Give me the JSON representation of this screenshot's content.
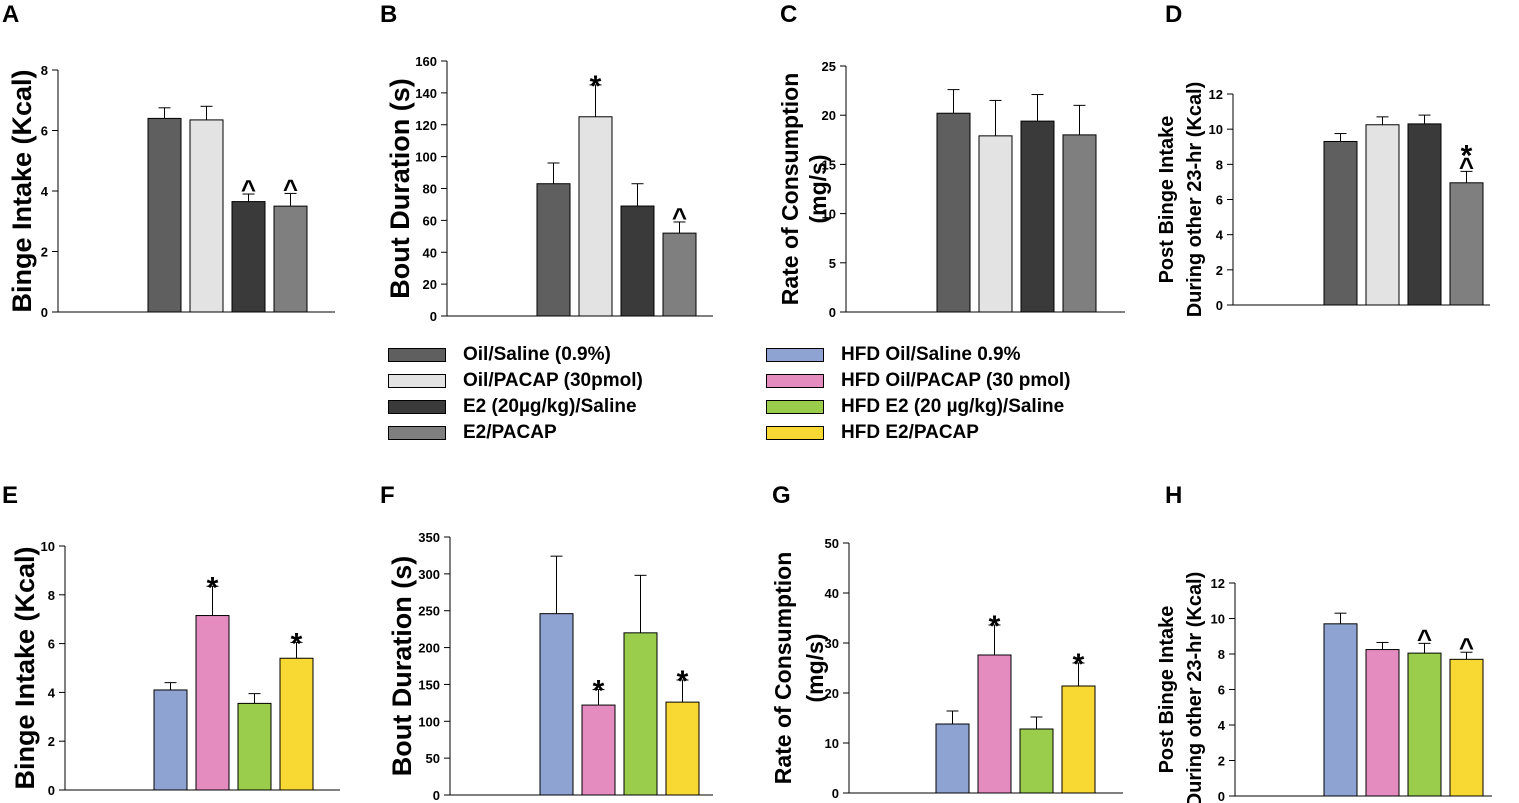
{
  "legend": {
    "left": [
      {
        "label": "Oil/Saline (0.9%)",
        "color": "#5f5f5f"
      },
      {
        "label": "Oil/PACAP (30pmol)",
        "color": "#e3e3e3"
      },
      {
        "label": "E2 (20µg/kg)/Saline",
        "color": "#3a3a3a"
      },
      {
        "label": "E2/PACAP",
        "color": "#7f7f7f"
      }
    ],
    "right": [
      {
        "label": "HFD Oil/Saline 0.9%",
        "color": "#8fa3d3"
      },
      {
        "label": "HFD Oil/PACAP (30 pmol)",
        "color": "#e48cc0"
      },
      {
        "label": "HFD E2 (20 µg/kg)/Saline",
        "color": "#9acd4c"
      },
      {
        "label": "HFD E2/PACAP",
        "color": "#f8d832"
      }
    ]
  },
  "chart_data": [
    {
      "panel": "A",
      "type": "bar",
      "ylabel": [
        "Binge Intake (Kcal)"
      ],
      "ylim": [
        0,
        8
      ],
      "yticks": [
        0,
        2,
        4,
        6,
        8
      ],
      "categories": [
        "Oil/Saline (0.9%)",
        "Oil/PACAP (30pmol)",
        "E2 (20µg/kg)/Saline",
        "E2/PACAP"
      ],
      "values": [
        6.4,
        6.35,
        3.65,
        3.5
      ],
      "errors": [
        0.35,
        0.45,
        0.25,
        0.42
      ],
      "annotations": [
        "",
        "",
        "^",
        "^"
      ],
      "colors": [
        "#5f5f5f",
        "#e3e3e3",
        "#3a3a3a",
        "#7f7f7f"
      ]
    },
    {
      "panel": "B",
      "type": "bar",
      "ylabel": [
        "Bout Duration (s)"
      ],
      "ylim": [
        0,
        160
      ],
      "yticks": [
        0,
        20,
        40,
        60,
        80,
        100,
        120,
        140,
        160
      ],
      "categories": [
        "Oil/Saline (0.9%)",
        "Oil/PACAP (30pmol)",
        "E2 (20µg/kg)/Saline",
        "E2/PACAP"
      ],
      "values": [
        83,
        125,
        69,
        52
      ],
      "errors": [
        13,
        20,
        14,
        7
      ],
      "annotations": [
        "",
        "*",
        "",
        "^"
      ],
      "colors": [
        "#5f5f5f",
        "#e3e3e3",
        "#3a3a3a",
        "#7f7f7f"
      ]
    },
    {
      "panel": "C",
      "type": "bar",
      "ylabel": [
        "Rate of Consumption",
        "(mg/s)"
      ],
      "ylim": [
        0,
        25
      ],
      "yticks": [
        0,
        5,
        10,
        15,
        20,
        25
      ],
      "categories": [
        "Oil/Saline (0.9%)",
        "Oil/PACAP (30pmol)",
        "E2 (20µg/kg)/Saline",
        "E2/PACAP"
      ],
      "values": [
        20.2,
        17.9,
        19.4,
        18.0
      ],
      "errors": [
        2.4,
        3.6,
        2.7,
        3.0
      ],
      "annotations": [
        "",
        "",
        "",
        ""
      ],
      "colors": [
        "#5f5f5f",
        "#e3e3e3",
        "#3a3a3a",
        "#7f7f7f"
      ]
    },
    {
      "panel": "D",
      "type": "bar",
      "ylabel": [
        "Post Binge Intake",
        "During other 23-hr (Kcal)"
      ],
      "ylim": [
        0,
        12
      ],
      "yticks": [
        0,
        2,
        4,
        6,
        8,
        10,
        12
      ],
      "categories": [
        "Oil/Saline (0.9%)",
        "Oil/PACAP (30pmol)",
        "E2 (20µg/kg)/Saline",
        "E2/PACAP"
      ],
      "values": [
        9.3,
        10.25,
        10.3,
        6.95
      ],
      "errors": [
        0.45,
        0.45,
        0.5,
        0.65
      ],
      "annotations": [
        "",
        "",
        "",
        "^*"
      ],
      "colors": [
        "#5f5f5f",
        "#e3e3e3",
        "#3a3a3a",
        "#7f7f7f"
      ]
    },
    {
      "panel": "E",
      "type": "bar",
      "ylabel": [
        "Binge Intake (Kcal)"
      ],
      "ylim": [
        0,
        10
      ],
      "yticks": [
        0,
        2,
        4,
        6,
        8,
        10
      ],
      "categories": [
        "HFD Oil/Saline 0.9%",
        "HFD Oil/PACAP (30 pmol)",
        "HFD E2 (20 µg/kg)/Saline",
        "HFD E2/PACAP"
      ],
      "values": [
        4.1,
        7.15,
        3.55,
        5.4
      ],
      "errors": [
        0.3,
        1.2,
        0.4,
        0.65
      ],
      "annotations": [
        "",
        "*",
        "",
        "*"
      ],
      "colors": [
        "#8fa3d3",
        "#e48cc0",
        "#9acd4c",
        "#f8d832"
      ]
    },
    {
      "panel": "F",
      "type": "bar",
      "ylabel": [
        "Bout Duration (s)"
      ],
      "ylim": [
        0,
        350
      ],
      "yticks": [
        0,
        50,
        100,
        150,
        200,
        250,
        300,
        350
      ],
      "categories": [
        "HFD Oil/Saline 0.9%",
        "HFD Oil/PACAP (30 pmol)",
        "HFD E2 (20 µg/kg)/Saline",
        "HFD E2/PACAP"
      ],
      "values": [
        246,
        122,
        220,
        126
      ],
      "errors": [
        78,
        21,
        78,
        30
      ],
      "annotations": [
        "",
        "*",
        "",
        "*"
      ],
      "colors": [
        "#8fa3d3",
        "#e48cc0",
        "#9acd4c",
        "#f8d832"
      ]
    },
    {
      "panel": "G",
      "type": "bar",
      "ylabel": [
        "Rate of Consumption",
        "(mg/s)"
      ],
      "ylim": [
        0,
        50
      ],
      "yticks": [
        0,
        10,
        20,
        30,
        40,
        50
      ],
      "categories": [
        "HFD Oil/Saline 0.9%",
        "HFD Oil/PACAP (30 pmol)",
        "HFD E2 (20 µg/kg)/Saline",
        "HFD E2/PACAP"
      ],
      "values": [
        13.8,
        27.6,
        12.8,
        21.4
      ],
      "errors": [
        2.6,
        6.0,
        2.4,
        4.6
      ],
      "annotations": [
        "",
        "*",
        "",
        "*"
      ],
      "colors": [
        "#8fa3d3",
        "#e48cc0",
        "#9acd4c",
        "#f8d832"
      ]
    },
    {
      "panel": "H",
      "type": "bar",
      "ylabel": [
        "Post Binge Intake",
        "During other 23-hr (Kcal)"
      ],
      "ylim": [
        0,
        12
      ],
      "yticks": [
        0,
        2,
        4,
        6,
        8,
        10,
        12
      ],
      "categories": [
        "HFD Oil/Saline 0.9%",
        "HFD Oil/PACAP (30 pmol)",
        "HFD E2 (20 µg/kg)/Saline",
        "HFD E2/PACAP"
      ],
      "values": [
        9.7,
        8.25,
        8.05,
        7.7
      ],
      "errors": [
        0.6,
        0.4,
        0.55,
        0.4
      ],
      "annotations": [
        "",
        "",
        "^",
        "^"
      ],
      "colors": [
        "#8fa3d3",
        "#e48cc0",
        "#9acd4c",
        "#f8d832"
      ]
    }
  ]
}
